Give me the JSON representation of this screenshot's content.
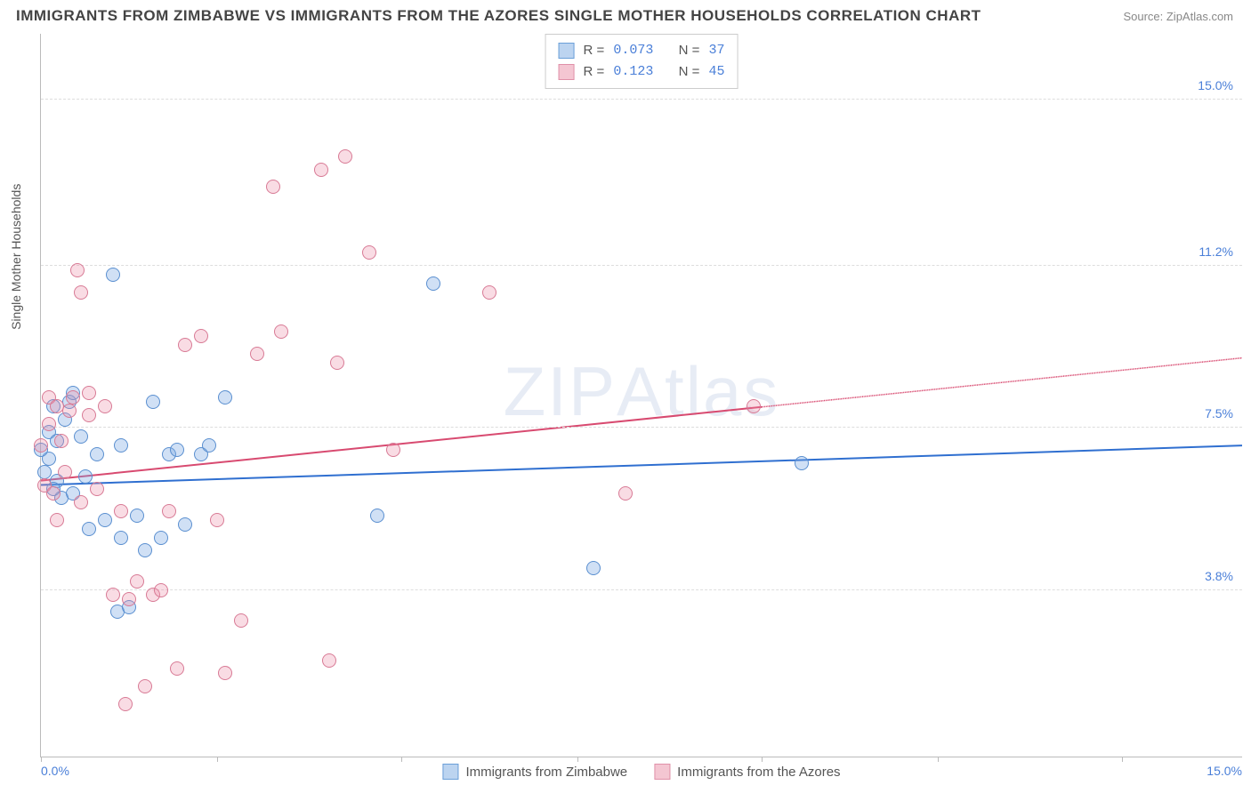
{
  "title": "IMMIGRANTS FROM ZIMBABWE VS IMMIGRANTS FROM THE AZORES SINGLE MOTHER HOUSEHOLDS CORRELATION CHART",
  "source": "Source: ZipAtlas.com",
  "watermark_a": "ZIP",
  "watermark_b": "Atlas",
  "y_axis_title": "Single Mother Households",
  "chart": {
    "type": "scatter",
    "xlim": [
      0,
      15
    ],
    "ylim": [
      0,
      16.5
    ],
    "background_color": "#ffffff",
    "grid_color": "#dddddd",
    "tick_color": "#4a7fd8",
    "yticks": [
      {
        "v": 3.8,
        "label": "3.8%"
      },
      {
        "v": 7.5,
        "label": "7.5%"
      },
      {
        "v": 11.2,
        "label": "11.2%"
      },
      {
        "v": 15.0,
        "label": "15.0%"
      }
    ],
    "xticks_left": "0.0%",
    "xticks_right": "15.0%",
    "xtick_marks": [
      0,
      2.2,
      4.5,
      6.7,
      9.0,
      11.2,
      13.5
    ],
    "series": [
      {
        "name": "Immigrants from Zimbabwe",
        "color_fill": "rgba(120,165,225,0.35)",
        "color_stroke": "#5a8fd0",
        "line_color": "#2f6fd0",
        "swatch_fill": "#bcd4f0",
        "swatch_border": "#6a9fd8",
        "r_label": "R =",
        "r_value": "0.073",
        "n_label": "N =",
        "n_value": "37",
        "trend": {
          "y0": 6.2,
          "y1": 7.1,
          "x_solid_end": 15
        },
        "points": [
          [
            0.1,
            7.4
          ],
          [
            0.1,
            6.8
          ],
          [
            0.15,
            8.0
          ],
          [
            0.2,
            6.3
          ],
          [
            0.2,
            7.2
          ],
          [
            0.25,
            5.9
          ],
          [
            0.3,
            7.7
          ],
          [
            0.35,
            8.1
          ],
          [
            0.4,
            6.0
          ],
          [
            0.5,
            7.3
          ],
          [
            0.6,
            5.2
          ],
          [
            0.7,
            6.9
          ],
          [
            0.8,
            5.4
          ],
          [
            0.9,
            11.0
          ],
          [
            0.95,
            3.3
          ],
          [
            1.0,
            5.0
          ],
          [
            1.0,
            7.1
          ],
          [
            1.1,
            3.4
          ],
          [
            1.2,
            5.5
          ],
          [
            1.3,
            4.7
          ],
          [
            1.4,
            8.1
          ],
          [
            1.5,
            5.0
          ],
          [
            1.6,
            6.9
          ],
          [
            1.7,
            7.0
          ],
          [
            1.8,
            5.3
          ],
          [
            2.0,
            6.9
          ],
          [
            2.1,
            7.1
          ],
          [
            2.3,
            8.2
          ],
          [
            4.2,
            5.5
          ],
          [
            4.9,
            10.8
          ],
          [
            6.9,
            4.3
          ],
          [
            9.5,
            6.7
          ],
          [
            0.0,
            7.0
          ],
          [
            0.05,
            6.5
          ],
          [
            0.4,
            8.3
          ],
          [
            0.15,
            6.1
          ],
          [
            0.55,
            6.4
          ]
        ]
      },
      {
        "name": "Immigrants from the Azores",
        "color_fill": "rgba(235,140,165,0.30)",
        "color_stroke": "#d87a95",
        "line_color": "#d84a70",
        "swatch_fill": "#f4c6d2",
        "swatch_border": "#e090a8",
        "r_label": "R =",
        "r_value": "0.123",
        "n_label": "N =",
        "n_value": "45",
        "trend": {
          "y0": 6.3,
          "y1": 9.1,
          "x_solid_end": 9.0
        },
        "points": [
          [
            0.05,
            6.2
          ],
          [
            0.1,
            7.6
          ],
          [
            0.1,
            8.2
          ],
          [
            0.15,
            6.0
          ],
          [
            0.2,
            8.0
          ],
          [
            0.2,
            5.4
          ],
          [
            0.3,
            6.5
          ],
          [
            0.35,
            7.9
          ],
          [
            0.4,
            8.2
          ],
          [
            0.45,
            11.1
          ],
          [
            0.5,
            10.6
          ],
          [
            0.5,
            5.8
          ],
          [
            0.6,
            7.8
          ],
          [
            0.7,
            6.1
          ],
          [
            0.8,
            8.0
          ],
          [
            0.9,
            3.7
          ],
          [
            1.0,
            5.6
          ],
          [
            1.05,
            1.2
          ],
          [
            1.1,
            3.6
          ],
          [
            1.2,
            4.0
          ],
          [
            1.3,
            1.6
          ],
          [
            1.4,
            3.7
          ],
          [
            1.5,
            3.8
          ],
          [
            1.6,
            5.6
          ],
          [
            1.7,
            2.0
          ],
          [
            1.8,
            9.4
          ],
          [
            2.0,
            9.6
          ],
          [
            2.2,
            5.4
          ],
          [
            2.3,
            1.9
          ],
          [
            2.5,
            3.1
          ],
          [
            2.7,
            9.2
          ],
          [
            2.9,
            13.0
          ],
          [
            3.0,
            9.7
          ],
          [
            3.5,
            13.4
          ],
          [
            3.6,
            2.2
          ],
          [
            3.7,
            9.0
          ],
          [
            3.8,
            13.7
          ],
          [
            4.1,
            11.5
          ],
          [
            4.4,
            7.0
          ],
          [
            5.6,
            10.6
          ],
          [
            7.3,
            6.0
          ],
          [
            8.9,
            8.0
          ],
          [
            0.0,
            7.1
          ],
          [
            0.6,
            8.3
          ],
          [
            0.25,
            7.2
          ]
        ]
      }
    ]
  }
}
